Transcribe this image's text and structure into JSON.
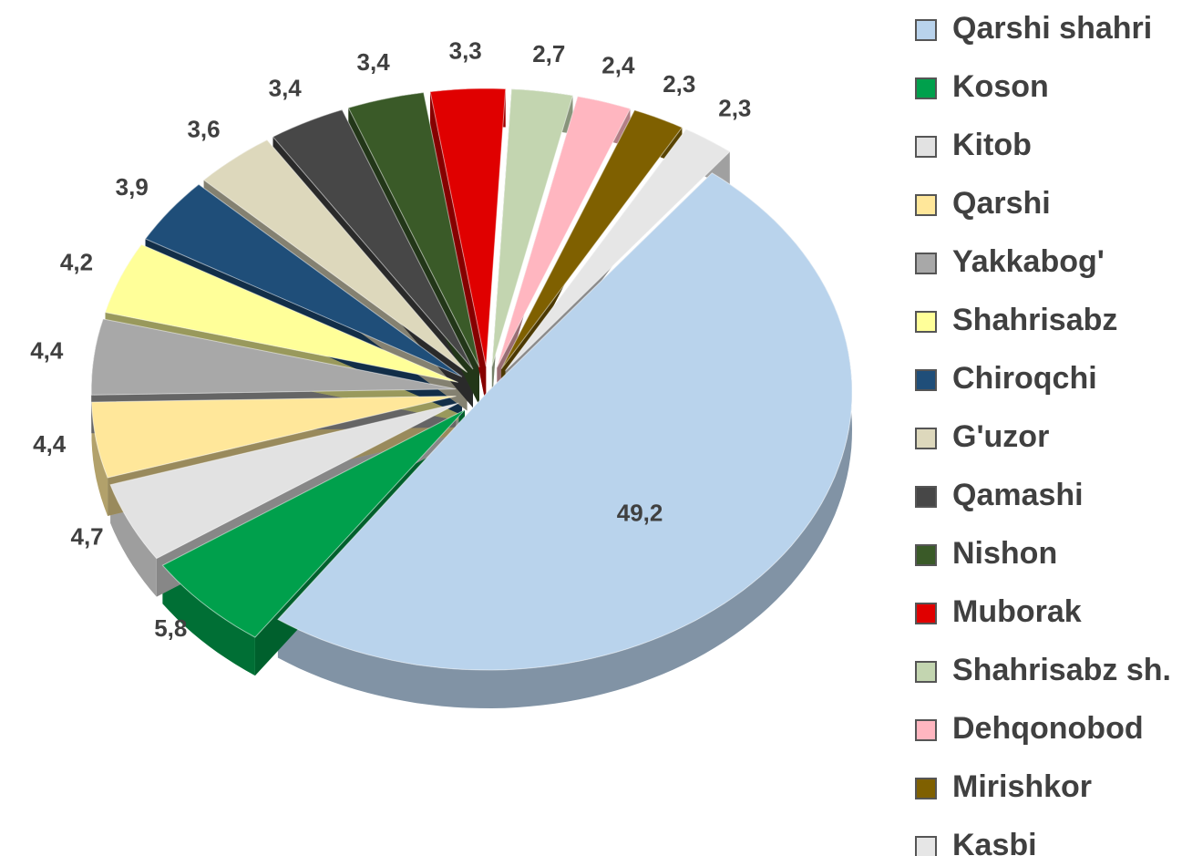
{
  "chart_data": {
    "type": "pie",
    "categories": [
      "Qarshi shahri",
      "Koson",
      "Kitob",
      "Qarshi",
      "Yakkabog'",
      "Shahrisabz",
      "Chiroqchi",
      "G'uzor",
      "Qamashi",
      "Nishon",
      "Muborak",
      "Shahrisabz sh.",
      "Dehqonobod",
      "Mirishkor",
      "Kasbi"
    ],
    "values": [
      49.2,
      5.8,
      4.7,
      4.4,
      4.4,
      4.2,
      3.9,
      3.6,
      3.4,
      3.4,
      3.3,
      2.7,
      2.4,
      2.3,
      2.3
    ],
    "value_labels": [
      "49,2",
      "5,8",
      "4,7",
      "4,4",
      "4,4",
      "4,2",
      "3,9",
      "3,6",
      "3,4",
      "3,4",
      "3,3",
      "2,7",
      "2,4",
      "2,3",
      "2,3"
    ],
    "colors": [
      "#b9d3ec",
      "#00a04c",
      "#e2e2e2",
      "#ffe79a",
      "#a8a8a8",
      "#ffff99",
      "#1f4e79",
      "#ddd8bc",
      "#474747",
      "#3a5a28",
      "#e00000",
      "#c3d5b0",
      "#ffb6c0",
      "#7f6000",
      "#e6e6e6"
    ],
    "legend": "right"
  }
}
